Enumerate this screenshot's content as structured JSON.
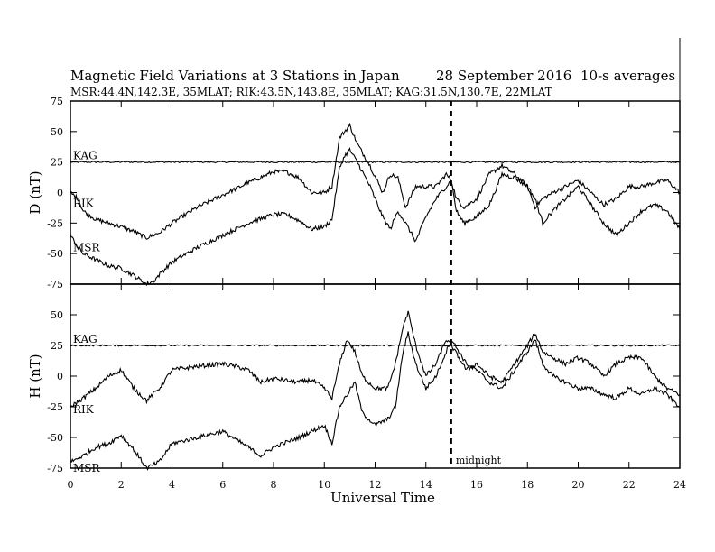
{
  "chart_data": {
    "type": "line",
    "title": {
      "main": "Magnetic Field Variations at 3 Stations in Japan",
      "date": "28 September 2016",
      "note": "10-s averages"
    },
    "subtitle": "MSR:44.4N,142.3E, 35MLAT;  RIK:43.5N,143.8E, 35MLAT;  KAG:31.5N,130.7E, 22MLAT",
    "xlabel": "Universal Time",
    "xlim": [
      0,
      24
    ],
    "xticks": [
      0,
      2,
      4,
      6,
      8,
      10,
      12,
      14,
      16,
      18,
      20,
      22,
      24
    ],
    "ylim": [
      -75,
      75
    ],
    "yticks": [
      -75,
      -50,
      -25,
      0,
      25,
      50,
      75
    ],
    "marker": {
      "x": 15,
      "label": "midnight",
      "style": "dashed"
    },
    "panels": [
      {
        "ylabel": "D (nT)",
        "series": [
          {
            "name": "KAG",
            "x": [
              0,
              24
            ],
            "y": [
              25,
              25
            ]
          },
          {
            "name": "RIK",
            "x": [
              0,
              0.3,
              0.5,
              1.0,
              1.5,
              2.0,
              2.5,
              3.0,
              3.5,
              4.0,
              5.0,
              6.0,
              7.0,
              8.0,
              8.5,
              9.0,
              9.5,
              10.0,
              10.3,
              10.6,
              10.8,
              11.0,
              11.3,
              11.8,
              12.3,
              12.6,
              12.9,
              13.2,
              13.6,
              14.0,
              14.4,
              14.8,
              15.0,
              15.2,
              15.5,
              16.0,
              16.5,
              17.0,
              17.5,
              18.0,
              18.3,
              18.6,
              19.0,
              19.5,
              20.0,
              20.5,
              21.0,
              21.5,
              22.0,
              22.5,
              23.0,
              23.5,
              24.0
            ],
            "y": [
              0,
              -5,
              -15,
              -22,
              -25,
              -28,
              -32,
              -37,
              -33,
              -25,
              -12,
              -2,
              8,
              17,
              17,
              12,
              0,
              0,
              5,
              45,
              50,
              55,
              40,
              22,
              0,
              15,
              12,
              -12,
              5,
              5,
              5,
              15,
              10,
              -5,
              -12,
              -5,
              15,
              22,
              15,
              5,
              -12,
              -5,
              0,
              5,
              10,
              0,
              -10,
              -5,
              5,
              5,
              8,
              10,
              0
            ]
          },
          {
            "name": "MSR",
            "x": [
              0,
              0.3,
              0.5,
              1.0,
              1.5,
              2.0,
              2.5,
              3.0,
              3.3,
              3.6,
              4.0,
              5.0,
              6.0,
              7.0,
              8.0,
              8.5,
              9.0,
              9.5,
              10.0,
              10.3,
              10.6,
              10.8,
              11.0,
              11.3,
              11.8,
              12.3,
              12.6,
              12.9,
              13.2,
              13.6,
              14.0,
              14.4,
              14.8,
              15.0,
              15.2,
              15.5,
              16.0,
              16.5,
              17.0,
              17.5,
              18.0,
              18.3,
              18.6,
              19.0,
              19.5,
              20.0,
              20.5,
              21.0,
              21.5,
              22.0,
              22.5,
              23.0,
              23.5,
              24.0
            ],
            "y": [
              -35,
              -45,
              -50,
              -55,
              -60,
              -62,
              -68,
              -75,
              -72,
              -65,
              -57,
              -45,
              -35,
              -25,
              -18,
              -18,
              -23,
              -30,
              -28,
              -22,
              20,
              30,
              35,
              25,
              5,
              -20,
              -30,
              -15,
              -25,
              -40,
              -20,
              -5,
              5,
              10,
              -15,
              -25,
              -20,
              -10,
              15,
              12,
              5,
              -5,
              -25,
              -15,
              -5,
              5,
              -10,
              -25,
              -35,
              -25,
              -15,
              -10,
              -15,
              -30
            ]
          }
        ]
      },
      {
        "ylabel": "H (nT)",
        "series": [
          {
            "name": "KAG",
            "x": [
              0,
              24
            ],
            "y": [
              25,
              25
            ]
          },
          {
            "name": "RIK",
            "x": [
              0,
              0.5,
              1.0,
              1.5,
              2.0,
              2.5,
              3.0,
              3.5,
              4.0,
              5.0,
              6.0,
              6.5,
              7.0,
              7.5,
              8.0,
              9.0,
              9.5,
              10.0,
              10.3,
              10.6,
              10.9,
              11.2,
              11.5,
              12.0,
              12.5,
              12.8,
              13.1,
              13.3,
              13.6,
              14.0,
              14.4,
              14.8,
              15.0,
              15.3,
              15.6,
              16.0,
              16.5,
              17.0,
              17.5,
              18.0,
              18.3,
              18.6,
              19.0,
              19.5,
              20.0,
              20.5,
              21.0,
              21.5,
              22.0,
              22.5,
              23.0,
              23.5,
              24.0
            ],
            "y": [
              -25,
              -18,
              -10,
              0,
              5,
              -10,
              -20,
              -10,
              5,
              8,
              10,
              8,
              5,
              -5,
              -2,
              -5,
              -3,
              -10,
              -18,
              10,
              30,
              20,
              0,
              -10,
              -10,
              10,
              40,
              52,
              25,
              0,
              10,
              30,
              25,
              15,
              5,
              10,
              0,
              -5,
              10,
              25,
              35,
              20,
              15,
              10,
              15,
              10,
              0,
              10,
              15,
              15,
              0,
              -10,
              -15
            ]
          },
          {
            "name": "MSR",
            "x": [
              0,
              0.5,
              1.0,
              1.5,
              2.0,
              2.5,
              3.0,
              3.5,
              4.0,
              5.0,
              6.0,
              7.0,
              7.5,
              8.0,
              9.0,
              9.5,
              10.0,
              10.3,
              10.6,
              10.9,
              11.2,
              11.5,
              12.0,
              12.5,
              12.8,
              13.1,
              13.3,
              13.6,
              14.0,
              14.4,
              14.8,
              15.0,
              15.3,
              15.6,
              16.0,
              16.5,
              17.0,
              17.5,
              18.0,
              18.3,
              18.6,
              19.0,
              19.5,
              20.0,
              20.5,
              21.0,
              21.5,
              22.0,
              22.5,
              23.0,
              23.5,
              24.0
            ],
            "y": [
              -70,
              -65,
              -58,
              -55,
              -48,
              -60,
              -75,
              -70,
              -55,
              -50,
              -45,
              -58,
              -65,
              -58,
              -50,
              -45,
              -40,
              -55,
              -25,
              -15,
              -5,
              -30,
              -40,
              -35,
              -25,
              20,
              35,
              10,
              -10,
              0,
              20,
              30,
              20,
              10,
              5,
              -5,
              -10,
              5,
              20,
              30,
              10,
              0,
              -5,
              -10,
              -10,
              -15,
              -18,
              -10,
              -15,
              -10,
              -15,
              -25
            ]
          }
        ]
      }
    ]
  }
}
